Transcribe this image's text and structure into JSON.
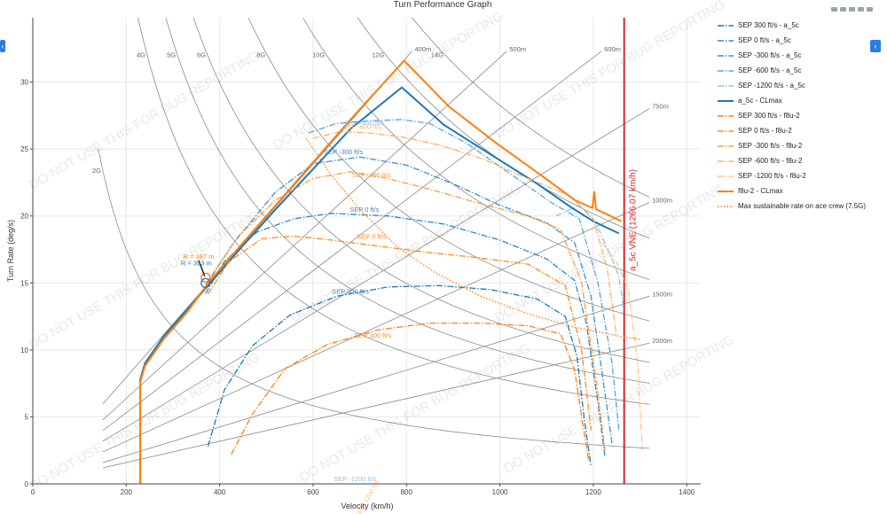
{
  "chart_data": {
    "type": "line",
    "title": "Turn Performance Graph",
    "xlabel": "Velocity (km/h)",
    "ylabel": "Turn Rate (deg/s)",
    "xlim": [
      0,
      1430
    ],
    "ylim": [
      0,
      34.8
    ],
    "x_ticks": [
      0,
      200,
      400,
      600,
      800,
      1000,
      1200,
      1400
    ],
    "y_ticks": [
      0,
      5,
      10,
      15,
      20,
      25,
      30
    ],
    "grid": true,
    "legend_placement": "right",
    "load_factor_lines": [
      {
        "label": "2G",
        "g": 2
      },
      {
        "label": "4G",
        "g": 4
      },
      {
        "label": "5G",
        "g": 5
      },
      {
        "label": "6G",
        "g": 6
      },
      {
        "label": "8G",
        "g": 8
      },
      {
        "label": "10G",
        "g": 10
      },
      {
        "label": "12G",
        "g": 12
      },
      {
        "label": "14G",
        "g": 14
      }
    ],
    "radius_lines": [
      {
        "label": "400m",
        "r": 400
      },
      {
        "label": "500m",
        "r": 500
      },
      {
        "label": "600m",
        "r": 600
      },
      {
        "label": "750m",
        "r": 750
      },
      {
        "label": "1000m",
        "r": 1000
      },
      {
        "label": "1500m",
        "r": 1500
      },
      {
        "label": "2000m",
        "r": 2000
      }
    ],
    "vne_line": {
      "x": 1266.07,
      "label": "a_5c VNE (1266.07 km/h)",
      "color": "#d62728"
    },
    "series": [
      {
        "name": "SEP 300 ft/s - a_5c",
        "color": "#1f77b4",
        "dash": "dashdot",
        "x": [
          375,
          410,
          470,
          550,
          650,
          760,
          870,
          980,
          1080,
          1140,
          1165,
          1180,
          1195
        ],
        "y": [
          2.8,
          7.0,
          10.3,
          12.6,
          14.0,
          14.7,
          14.8,
          14.5,
          13.8,
          12.5,
          9.5,
          5.0,
          1.3
        ]
      },
      {
        "name": "SEP 0 ft/s - a_5c",
        "color": "#2d87c9",
        "dash": "dashdot",
        "x": [
          370,
          410,
          480,
          560,
          640,
          760,
          880,
          1000,
          1100,
          1160,
          1185,
          1210,
          1225
        ],
        "y": [
          14.2,
          16.6,
          18.8,
          19.8,
          20.2,
          20.0,
          19.4,
          18.2,
          16.8,
          15.2,
          12.0,
          6.0,
          2.0
        ]
      },
      {
        "name": "SEP -300 ft/s - a_5c",
        "color": "#3b8fd0",
        "dash": "dashdot",
        "x": [
          370,
          430,
          520,
          600,
          700,
          800,
          900,
          1000,
          1100,
          1160,
          1195,
          1220,
          1240
        ],
        "y": [
          14.8,
          18.0,
          21.8,
          23.9,
          24.4,
          23.8,
          22.4,
          20.8,
          19.5,
          18.0,
          14.0,
          8.0,
          3.0
        ]
      },
      {
        "name": "SEP -600 ft/s - a_5c",
        "color": "#5aa4dc",
        "dash": "dashdot",
        "x": [
          590,
          650,
          720,
          790,
          850,
          930,
          1020,
          1110,
          1170,
          1210,
          1240,
          1255
        ],
        "y": [
          26.2,
          26.9,
          27.1,
          27.2,
          26.9,
          25.4,
          23.2,
          21.0,
          19.8,
          15.0,
          9.0,
          4.0
        ]
      },
      {
        "name": "SEP -1200 ft/s - a_5c",
        "color": "#93c2e8",
        "dash": "dashdot",
        "x": [
          1120,
          1170,
          1205,
          1235,
          1255,
          1265
        ],
        "y": [
          20.0,
          20.8,
          19.5,
          17.2,
          15.5,
          13.0
        ]
      },
      {
        "name": "a_5c - CLmax",
        "color": "#1f77b4",
        "dash": "solid",
        "x": [
          230,
          230,
          240,
          280,
          330,
          380,
          450,
          520,
          600,
          680,
          790,
          880,
          980,
          1080,
          1150,
          1200,
          1255
        ],
        "y": [
          0,
          7.8,
          9.0,
          11.0,
          13.0,
          15.0,
          17.8,
          20.5,
          23.5,
          26.5,
          29.6,
          26.8,
          24.6,
          22.4,
          20.7,
          19.6,
          18.7
        ]
      },
      {
        "name": "SEP 300 ft/s - f8u-2",
        "color": "#ff7f0e",
        "dash": "dashdot",
        "x": [
          425,
          470,
          540,
          630,
          740,
          850,
          960,
          1060,
          1130,
          1160,
          1175,
          1190
        ],
        "y": [
          2.2,
          5.2,
          8.6,
          10.4,
          11.5,
          12.0,
          12.0,
          11.8,
          11.2,
          8.5,
          5.0,
          1.8
        ]
      },
      {
        "name": "SEP 0 ft/s - f8u-2",
        "color": "#ff8a1f",
        "dash": "dashdot",
        "x": [
          375,
          420,
          490,
          560,
          640,
          730,
          840,
          950,
          1060,
          1140,
          1175,
          1195
        ],
        "y": [
          14.2,
          16.6,
          18.3,
          18.5,
          18.2,
          17.8,
          17.3,
          16.9,
          16.4,
          14.8,
          10.0,
          4.0
        ]
      },
      {
        "name": "SEP -300 ft/s - f8u-2",
        "color": "#ff9b3e",
        "dash": "dashdot",
        "x": [
          370,
          440,
          520,
          600,
          680,
          760,
          850,
          950,
          1060,
          1130,
          1175,
          1205,
          1225
        ],
        "y": [
          14.9,
          18.5,
          21.2,
          22.8,
          23.3,
          22.8,
          22.0,
          21.0,
          20.0,
          19.0,
          15.0,
          8.0,
          2.5
        ]
      },
      {
        "name": "SEP -600 ft/s - f8u-2",
        "color": "#ffae60",
        "dash": "dashdot",
        "x": [
          600,
          660,
          720,
          790,
          870,
          960,
          1060,
          1150,
          1200,
          1230,
          1250
        ],
        "y": [
          25.8,
          26.3,
          26.2,
          25.9,
          25.3,
          24.3,
          22.8,
          21.5,
          19.8,
          16.0,
          11.0
        ]
      },
      {
        "name": "SEP -1200 ft/s - f8u-2",
        "color": "#ffc58a",
        "dash": "dashdot",
        "x": [
          1220,
          1250,
          1275,
          1295,
          1305
        ],
        "y": [
          18.0,
          16.5,
          14.5,
          9.0,
          2.5
        ]
      },
      {
        "name": "f8u-2 - CLmax",
        "color": "#ff7f0e",
        "dash": "solid",
        "x": [
          230,
          230,
          240,
          280,
          330,
          380,
          450,
          520,
          600,
          680,
          795,
          890,
          990,
          1090,
          1160,
          1198,
          1202,
          1206,
          1225,
          1260
        ],
        "y": [
          0,
          7.6,
          8.8,
          10.8,
          12.8,
          15.2,
          18.0,
          20.8,
          24.0,
          27.2,
          31.6,
          28.2,
          25.5,
          23.0,
          21.2,
          20.6,
          21.8,
          20.5,
          20.2,
          19.6
        ]
      },
      {
        "name": "Max sustainable rate on ace crew (7.5G)",
        "color": "#ff7f0e",
        "dash": "dot",
        "x": [
          585,
          640,
          700,
          780,
          860,
          960,
          1060,
          1160,
          1260,
          1300
        ],
        "y": [
          25.8,
          23.0,
          20.5,
          17.7,
          15.8,
          14.0,
          12.7,
          11.7,
          11.0,
          10.8
        ]
      }
    ],
    "annotations": [
      {
        "text": "SEP 300 ft/s",
        "x": 680,
        "y": 14.2,
        "color": "#3a86c8"
      },
      {
        "text": "SEP 0 ft/s",
        "x": 710,
        "y": 20.3,
        "color": "#3a86c8"
      },
      {
        "text": "SEP -300 ft/s",
        "x": 665,
        "y": 24.6,
        "color": "#3a86c8"
      },
      {
        "text": "SEP -600 ft/s",
        "x": 710,
        "y": 26.8,
        "color": "#8bbde6"
      },
      {
        "text": "SEP 0 ft/s",
        "x": 725,
        "y": 18.3,
        "color": "#ff8c1a"
      },
      {
        "text": "SEP 300 ft/s",
        "x": 728,
        "y": 10.9,
        "color": "#ff8c1a"
      },
      {
        "text": "SEP -300 ft/s",
        "x": 725,
        "y": 22.9,
        "color": "#ff9b3e"
      },
      {
        "text": "SEP -600 ft/s",
        "x": 705,
        "y": 26.5,
        "color": "#ffae60"
      },
      {
        "text": "SEP -1200 ft/s",
        "x": 690,
        "y": 0.2,
        "color": "#93c2e8"
      },
      {
        "text": "SEP -1200 ft/s",
        "x": 720,
        "y": -1.2,
        "color": "#ffc58a"
      },
      {
        "text": "R = 387 m",
        "x": 355,
        "y": 16.8,
        "color": "#ff7f0e"
      },
      {
        "text": "R = 393 m",
        "x": 350,
        "y": 16.3,
        "color": "#1f77b4"
      }
    ],
    "markers": [
      {
        "x": 370,
        "y": 15.4,
        "color": "#ff7f0e"
      },
      {
        "x": 370,
        "y": 15.0,
        "color": "#1f77b4"
      }
    ],
    "watermark": "DO NOT USE THIS FOR BUG REPORTING"
  }
}
